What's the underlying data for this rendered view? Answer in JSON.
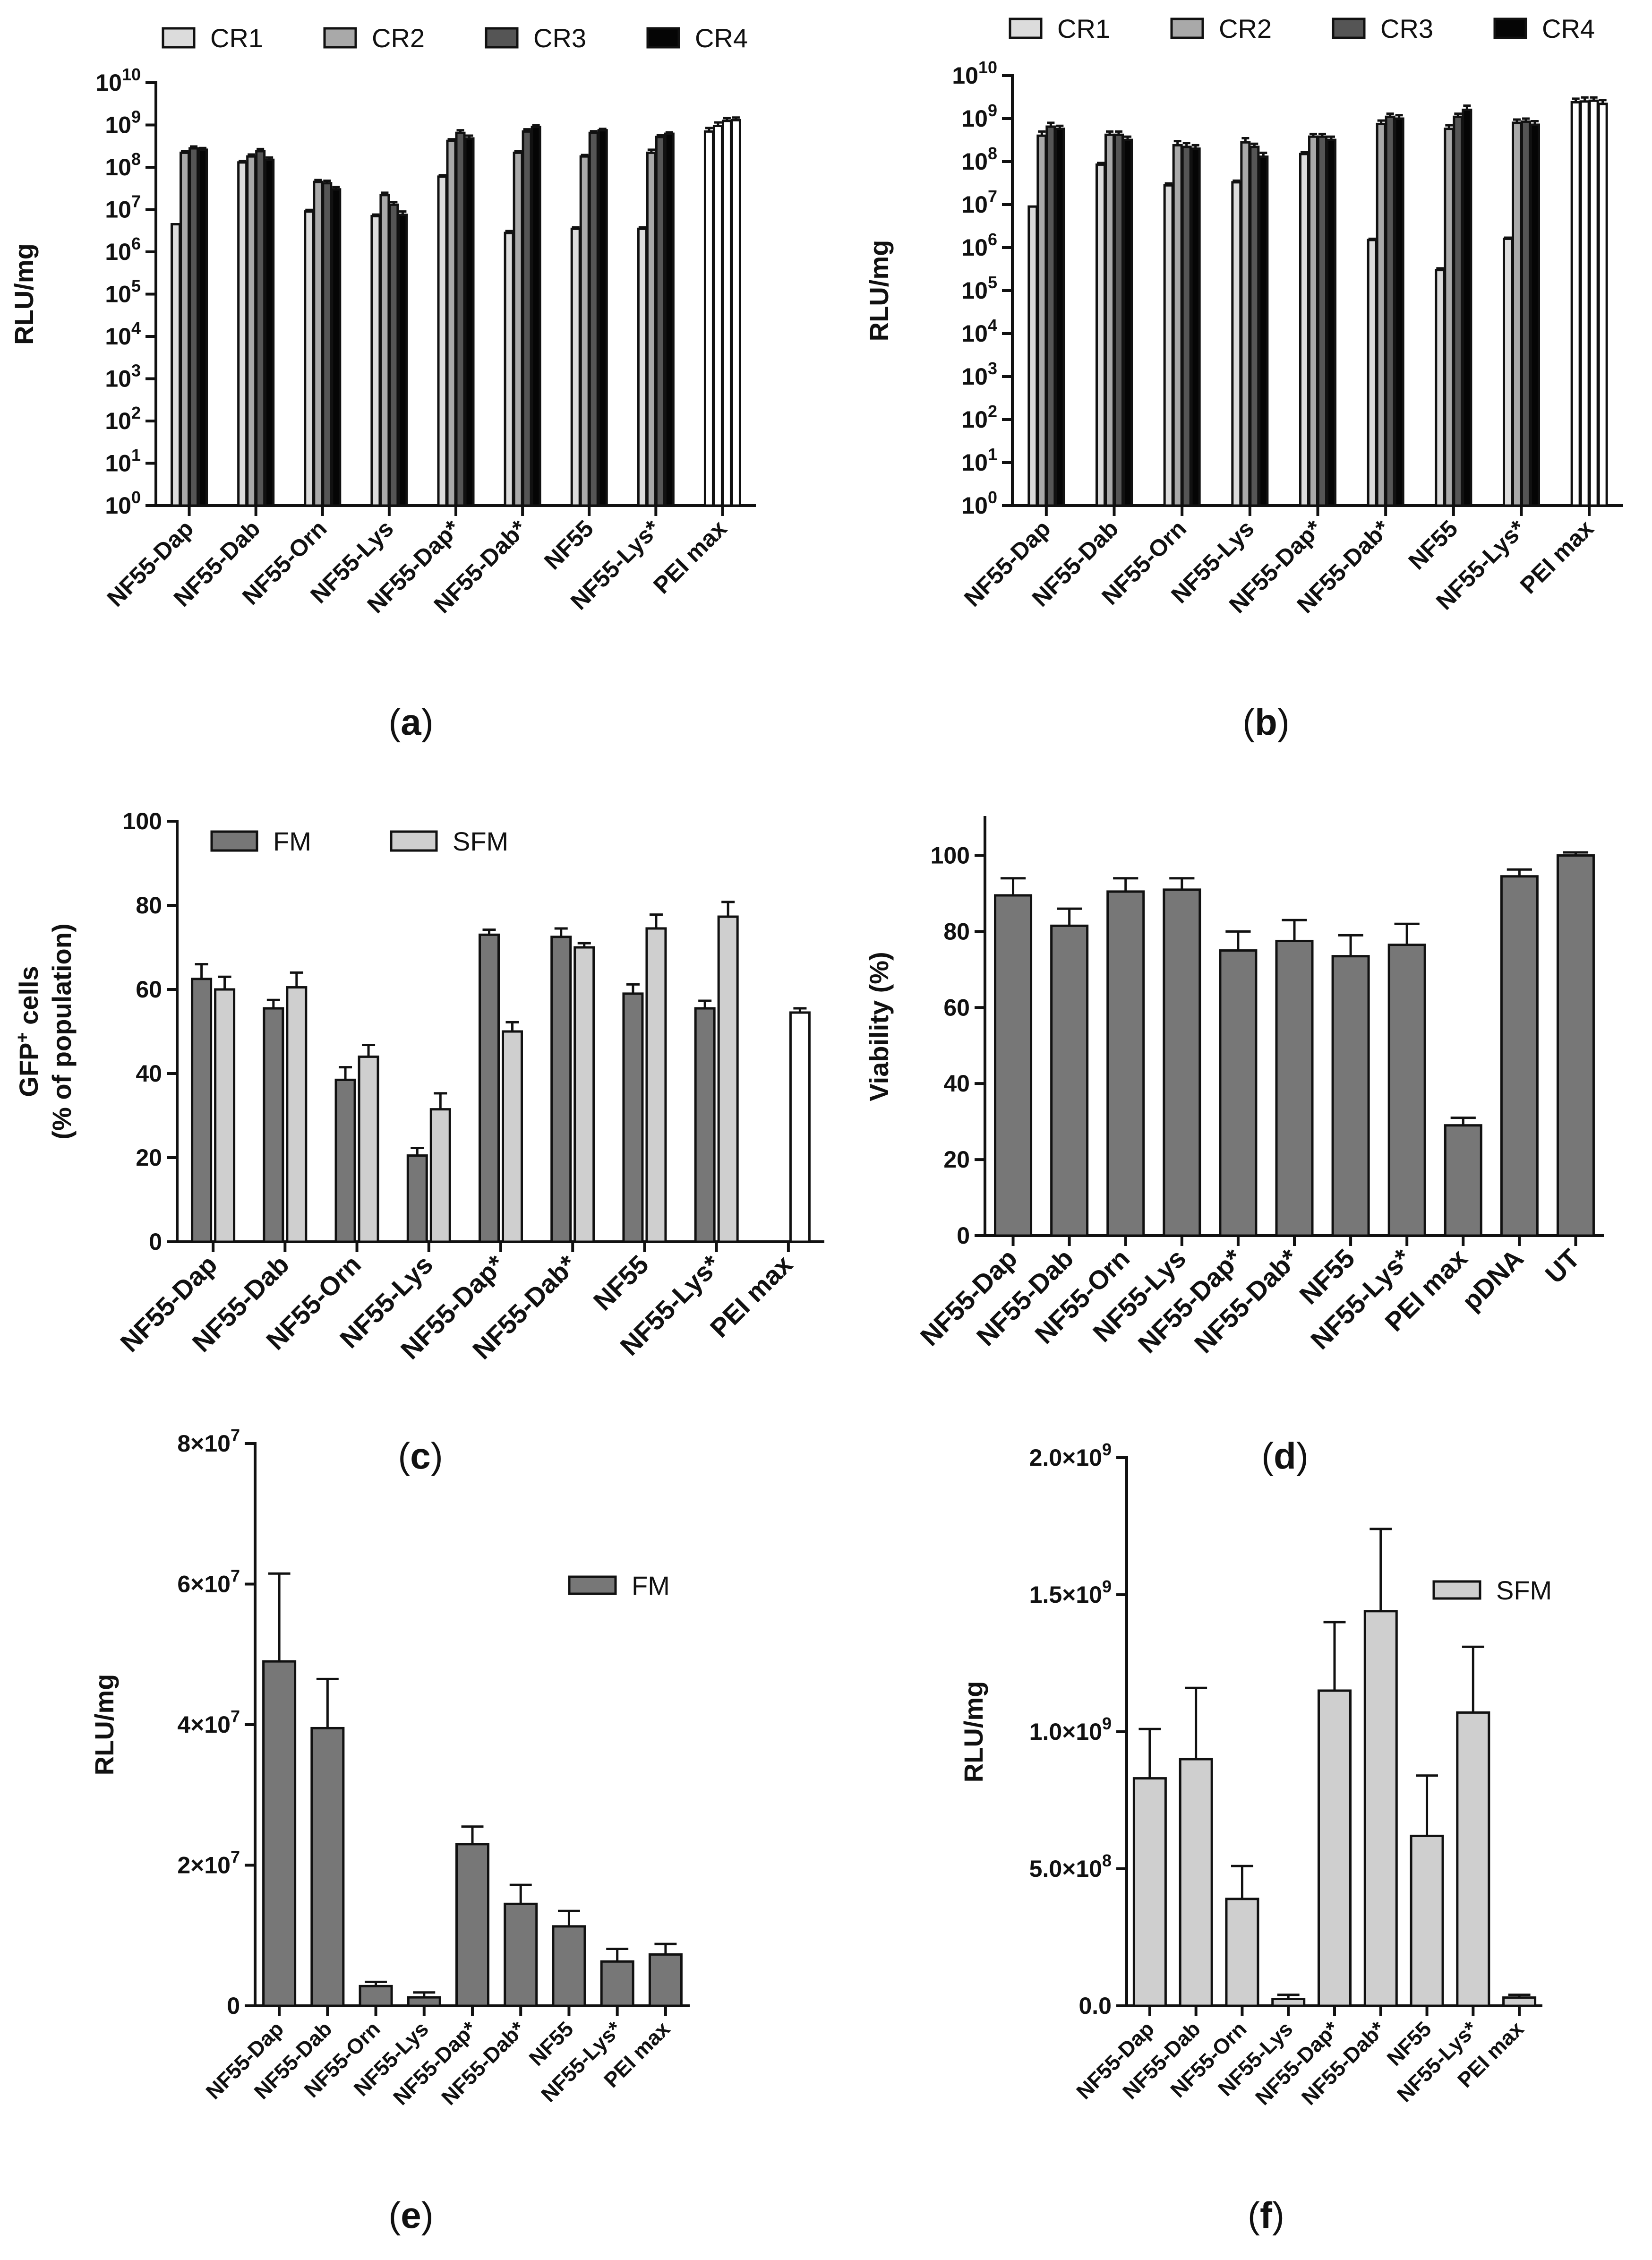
{
  "chart_data": [
    {
      "panel": "a",
      "type": "bar",
      "scale": "log",
      "ylabel": "RLU/mg",
      "ylim": [
        1,
        10000000000
      ],
      "yticks": [
        {
          "base": "10",
          "exp": "0"
        },
        {
          "base": "10",
          "exp": "1"
        },
        {
          "base": "10",
          "exp": "2"
        },
        {
          "base": "10",
          "exp": "3"
        },
        {
          "base": "10",
          "exp": "4"
        },
        {
          "base": "10",
          "exp": "5"
        },
        {
          "base": "10",
          "exp": "6"
        },
        {
          "base": "10",
          "exp": "7"
        },
        {
          "base": "10",
          "exp": "8"
        },
        {
          "base": "10",
          "exp": "9"
        },
        {
          "base": "10",
          "exp": "10"
        }
      ],
      "categories": [
        "NF55-Dap",
        "NF55-Dab",
        "NF55-Orn",
        "NF55-Lys",
        "NF55-Dap*",
        "NF55-Dab*",
        "NF55",
        "NF55-Lys*",
        "PEI max"
      ],
      "legend": [
        "CR1",
        "CR2",
        "CR3",
        "CR4"
      ],
      "series": [
        {
          "name": "CR1",
          "color": "#dcdcdc",
          "values": [
            4500000,
            130000000,
            9000000,
            7000000,
            60000000,
            2800000,
            3500000,
            3500000,
            700000000
          ],
          "errors": [
            0,
            10000000,
            800000,
            600000,
            5000000,
            300000,
            300000,
            300000,
            150000000
          ]
        },
        {
          "name": "CR2",
          "color": "#a9a9a9",
          "values": [
            220000000,
            180000000,
            45000000,
            22000000,
            420000000,
            220000000,
            180000000,
            220000000,
            950000000
          ],
          "errors": [
            20000000,
            20000000,
            5000000,
            3000000,
            40000000,
            20000000,
            15000000,
            40000000,
            200000000
          ]
        },
        {
          "name": "CR3",
          "color": "#555555",
          "values": [
            280000000,
            240000000,
            42000000,
            13000000,
            650000000,
            700000000,
            650000000,
            520000000,
            1250000000
          ],
          "errors": [
            30000000,
            30000000,
            6000000,
            2000000,
            100000000,
            90000000,
            60000000,
            50000000,
            200000000
          ]
        },
        {
          "name": "CR4",
          "color": "#050505",
          "values": [
            260000000,
            150000000,
            30000000,
            7500000,
            480000000,
            900000000,
            750000000,
            620000000,
            1300000000
          ],
          "errors": [
            25000000,
            20000000,
            4000000,
            1500000,
            80000000,
            90000000,
            60000000,
            50000000,
            200000000
          ]
        }
      ],
      "white_last_category": true,
      "panel_label": "a"
    },
    {
      "panel": "b",
      "type": "bar",
      "scale": "log",
      "ylabel": "RLU/mg",
      "ylim": [
        1,
        10000000000
      ],
      "yticks": [
        {
          "base": "10",
          "exp": "0"
        },
        {
          "base": "10",
          "exp": "1"
        },
        {
          "base": "10",
          "exp": "2"
        },
        {
          "base": "10",
          "exp": "3"
        },
        {
          "base": "10",
          "exp": "4"
        },
        {
          "base": "10",
          "exp": "5"
        },
        {
          "base": "10",
          "exp": "6"
        },
        {
          "base": "10",
          "exp": "7"
        },
        {
          "base": "10",
          "exp": "8"
        },
        {
          "base": "10",
          "exp": "9"
        },
        {
          "base": "10",
          "exp": "10"
        }
      ],
      "categories": [
        "NF55-Dap",
        "NF55-Dab",
        "NF55-Orn",
        "NF55-Lys",
        "NF55-Dap*",
        "NF55-Dab*",
        "NF55",
        "NF55-Lys*",
        "PEI max"
      ],
      "legend": [
        "CR1",
        "CR2",
        "CR3",
        "CR4"
      ],
      "series": [
        {
          "name": "CR1",
          "color": "#dcdcdc",
          "values": [
            9000000,
            85000000,
            28000000,
            33000000,
            150000000,
            1500000,
            300000,
            1600000,
            2400000000
          ],
          "errors": [
            0,
            8000000,
            3000000,
            3000000,
            15000000,
            100000,
            30000,
            100000,
            500000000
          ]
        },
        {
          "name": "CR2",
          "color": "#a9a9a9",
          "values": [
            400000000,
            420000000,
            240000000,
            280000000,
            380000000,
            750000000,
            580000000,
            800000000,
            2500000000
          ],
          "errors": [
            100000000,
            80000000,
            60000000,
            70000000,
            60000000,
            150000000,
            120000000,
            150000000,
            600000000
          ]
        },
        {
          "name": "CR3",
          "color": "#555555",
          "values": [
            650000000,
            420000000,
            220000000,
            220000000,
            380000000,
            1100000000,
            1100000000,
            850000000,
            2600000000
          ],
          "errors": [
            150000000,
            80000000,
            50000000,
            40000000,
            60000000,
            200000000,
            200000000,
            150000000,
            500000000
          ]
        },
        {
          "name": "CR4",
          "color": "#050505",
          "values": [
            580000000,
            320000000,
            200000000,
            130000000,
            320000000,
            1000000000,
            1600000000,
            720000000,
            2200000000
          ],
          "errors": [
            100000000,
            60000000,
            40000000,
            30000000,
            60000000,
            200000000,
            400000000,
            150000000,
            500000000
          ]
        }
      ],
      "white_last_category": true,
      "panel_label": "b"
    },
    {
      "panel": "c",
      "type": "bar",
      "scale": "linear",
      "ylabel_lines": [
        "GFP",
        "(% of population)"
      ],
      "ylabel_sup": "+",
      "ylabel_suffix": " cells",
      "ylim": [
        0,
        100
      ],
      "yticks": [
        "0",
        "20",
        "40",
        "60",
        "80",
        "100"
      ],
      "categories": [
        "NF55-Dap",
        "NF55-Dab",
        "NF55-Orn",
        "NF55-Lys",
        "NF55-Dap*",
        "NF55-Dab*",
        "NF55",
        "NF55-Lys*",
        "PEI max"
      ],
      "legend": [
        "FM",
        "SFM"
      ],
      "series": [
        {
          "name": "FM",
          "color": "#777777",
          "values": [
            62.5,
            55.5,
            38.5,
            20.5,
            73,
            72.5,
            59,
            55.5,
            null
          ],
          "errors": [
            3.5,
            2,
            3,
            1.8,
            1.2,
            2,
            2.2,
            1.8,
            null
          ]
        },
        {
          "name": "SFM",
          "color": "#cfcfcf",
          "values": [
            60,
            60.5,
            44,
            31.5,
            50,
            70,
            74.5,
            77.3,
            54.5
          ],
          "errors": [
            3,
            3.5,
            2.8,
            3.8,
            2.2,
            1,
            3.3,
            3.5,
            1
          ]
        }
      ],
      "white_last_category": true,
      "panel_label": "c"
    },
    {
      "panel": "d",
      "type": "bar",
      "scale": "linear",
      "ylabel": "Viability (%)",
      "ylim": [
        0,
        110
      ],
      "yticks": [
        "0",
        "20",
        "40",
        "60",
        "80",
        "100"
      ],
      "categories": [
        "NF55-Dap",
        "NF55-Dab",
        "NF55-Orn",
        "NF55-Lys",
        "NF55-Dap*",
        "NF55-Dab*",
        "NF55",
        "NF55-Lys*",
        "PEI max",
        "pDNA",
        "UT"
      ],
      "series": [
        {
          "name": "Viability",
          "color": "#777777",
          "values": [
            89.5,
            81.5,
            90.5,
            91,
            75,
            77.5,
            73.5,
            76.5,
            29,
            94.5,
            100
          ],
          "errors": [
            4.5,
            4.5,
            3.5,
            3,
            5,
            5.5,
            5.5,
            5.5,
            2,
            1.8,
            0.8
          ]
        }
      ],
      "panel_label": "d"
    },
    {
      "panel": "e",
      "type": "bar",
      "scale": "linear",
      "ylabel": "RLU/mg",
      "ylim": [
        0,
        80000000
      ],
      "yticks": [
        {
          "text": "0"
        },
        {
          "text": "2×10",
          "exp": "7"
        },
        {
          "text": "4×10",
          "exp": "7"
        },
        {
          "text": "6×10",
          "exp": "7"
        },
        {
          "text": "8×10",
          "exp": "7"
        }
      ],
      "categories": [
        "NF55-Dap",
        "NF55-Dab",
        "NF55-Orn",
        "NF55-Lys",
        "NF55-Dap*",
        "NF55-Dab*",
        "NF55",
        "NF55-Lys*",
        "PEI max"
      ],
      "legend": [
        "FM"
      ],
      "series": [
        {
          "name": "FM",
          "color": "#777777",
          "values": [
            49000000,
            39500000,
            2800000,
            1200000,
            23000000,
            14500000,
            11300000,
            6300000,
            7300000
          ],
          "errors": [
            12500000,
            7000000,
            600000,
            700000,
            2500000,
            2700000,
            2200000,
            1800000,
            1500000
          ]
        }
      ],
      "panel_label": "e"
    },
    {
      "panel": "f",
      "type": "bar",
      "scale": "linear",
      "ylabel": "RLU/mg",
      "ylim": [
        0,
        2000000000
      ],
      "yticks": [
        {
          "text": "0.0"
        },
        {
          "text": "5.0×10",
          "exp": "8"
        },
        {
          "text": "1.0×10",
          "exp": "9"
        },
        {
          "text": "1.5×10",
          "exp": "9"
        },
        {
          "text": "2.0×10",
          "exp": "9"
        }
      ],
      "categories": [
        "NF55-Dap",
        "NF55-Dab",
        "NF55-Orn",
        "NF55-Lys",
        "NF55-Dap*",
        "NF55-Dab*",
        "NF55",
        "NF55-Lys*",
        "PEI max"
      ],
      "legend": [
        "SFM"
      ],
      "series": [
        {
          "name": "SFM",
          "color": "#cfcfcf",
          "values": [
            830000000,
            900000000,
            390000000,
            25000000,
            1150000000,
            1440000000,
            620000000,
            1070000000,
            30000000
          ],
          "errors": [
            180000000,
            260000000,
            120000000,
            15000000,
            250000000,
            300000000,
            220000000,
            240000000,
            10000000
          ]
        }
      ],
      "panel_label": "f"
    }
  ]
}
